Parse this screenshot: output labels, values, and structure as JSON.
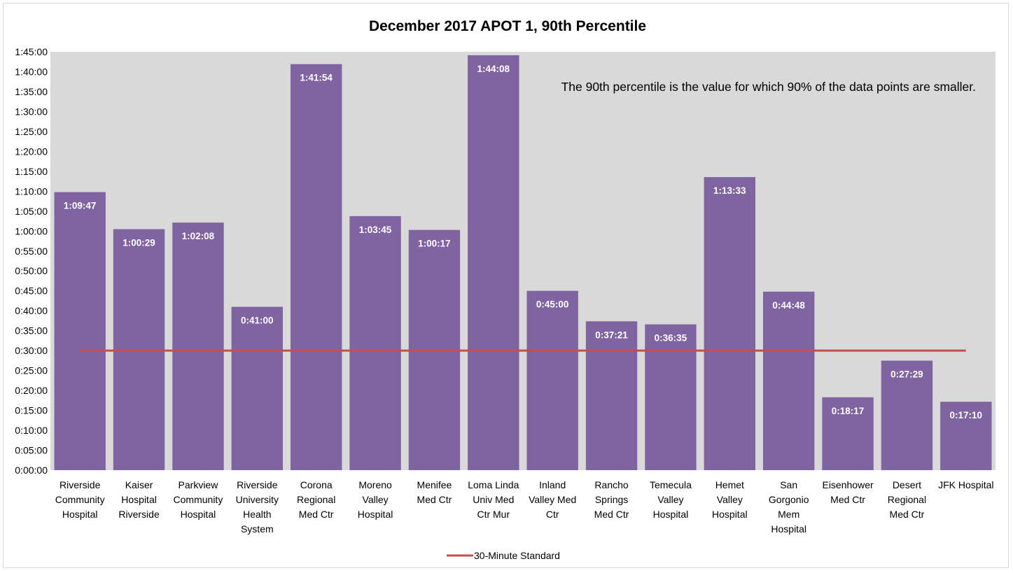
{
  "chart_data": {
    "type": "bar",
    "title": "December 2017 APOT 1, 90th Percentile",
    "xlabel": "",
    "ylabel": "",
    "ylim": [
      "0:00:00",
      "1:45:00"
    ],
    "ytick_step": "0:05:00",
    "grid": false,
    "legend_position": "bottom",
    "bar_color": "#8064a2",
    "plot_background": "#d9d9d9",
    "annotation": "The 90th percentile is the value for which 90% of the data points are smaller.",
    "categories": [
      "Riverside Community Hospital",
      "Kaiser Hospital Riverside",
      "Parkview Community Hospital",
      "Riverside University Health System",
      "Corona Regional Med Ctr",
      "Moreno Valley Hospital",
      "Menifee Med Ctr",
      "Loma Linda Univ Med Ctr Mur",
      "Inland Valley Med Ctr",
      "Rancho Springs Med Ctr",
      "Temecula Valley Hospital",
      "Hemet Valley Hospital",
      "San Gorgonio Mem Hospital",
      "Eisenhower Med Ctr",
      "Desert Regional Med Ctr",
      "JFK Hospital"
    ],
    "category_lines": [
      [
        "Riverside",
        "Community",
        "Hospital"
      ],
      [
        "Kaiser",
        "Hospital",
        "Riverside"
      ],
      [
        "Parkview",
        "Community",
        "Hospital"
      ],
      [
        "Riverside",
        "University",
        "Health",
        "System"
      ],
      [
        "Corona",
        "Regional",
        "Med Ctr"
      ],
      [
        "Moreno",
        "Valley",
        "Hospital"
      ],
      [
        "Menifee",
        "Med Ctr"
      ],
      [
        "Loma Linda",
        "Univ Med",
        "Ctr Mur"
      ],
      [
        "Inland",
        "Valley Med",
        "Ctr"
      ],
      [
        "Rancho",
        "Springs",
        "Med Ctr"
      ],
      [
        "Temecula",
        "Valley",
        "Hospital"
      ],
      [
        "Hemet",
        "Valley",
        "Hospital"
      ],
      [
        "San",
        "Gorgonio",
        "Mem",
        "Hospital"
      ],
      [
        "Eisenhower",
        "Med Ctr"
      ],
      [
        "Desert",
        "Regional",
        "Med Ctr"
      ],
      [
        "JFK Hospital"
      ]
    ],
    "values": [
      "1:09:47",
      "1:00:29",
      "1:02:08",
      "0:41:00",
      "1:41:54",
      "1:03:45",
      "1:00:17",
      "1:44:08",
      "0:45:00",
      "0:37:21",
      "0:36:35",
      "1:13:33",
      "0:44:48",
      "0:18:17",
      "0:27:29",
      "0:17:10"
    ],
    "standard": {
      "name": "30-Minute Standard",
      "value": "0:30:00",
      "color": "#c0504d"
    }
  }
}
